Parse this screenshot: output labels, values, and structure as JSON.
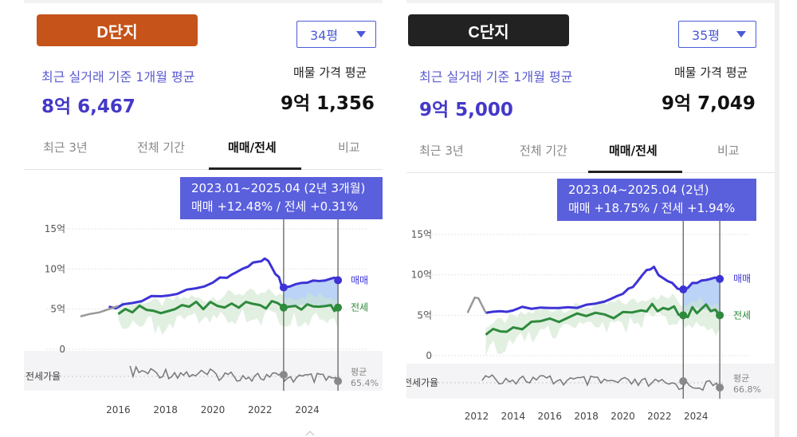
{
  "panels": [
    {
      "badge": "D단지",
      "badge_color": "#c5531a",
      "select_value": "34평",
      "real_label": "최근 실거래 기준 1개월 평균",
      "real_value": "8억 6,467",
      "ask_label": "매물 가격 평균",
      "ask_value": "9억 1,356",
      "tabs": [
        "최근 3년",
        "전체 기간",
        "매매/전세",
        "비교"
      ],
      "active_tab": 2,
      "tooltip_line1": "2023.01~2025.04 (2년 3개월)",
      "tooltip_line2": "매매 +12.48%  /  전세 +0.31%"
    },
    {
      "badge": "C단지",
      "badge_color": "#222222",
      "select_value": "35평",
      "real_label": "최근 실거래 기준 1개월 평균",
      "real_value": "9억 5,000",
      "ask_label": "매물 가격 평균",
      "ask_value": "9억 7,049",
      "tabs": [
        "최근 3년",
        "전체 기간",
        "매매/전세",
        "비교"
      ],
      "active_tab": 2,
      "tooltip_line1": "2023.04~2025.04 (2년)",
      "tooltip_line2": "매매 +18.75%  /  전세 +1.94%"
    }
  ],
  "chart_data": [
    {
      "type": "line",
      "panel": "D단지",
      "y_ticks": [
        "15억",
        "10억",
        "5억",
        "0"
      ],
      "ylim": [
        0,
        15
      ],
      "x_ticks": [
        "2016",
        "2018",
        "2020",
        "2022",
        "2024"
      ],
      "xlim": [
        2014.3,
        2025.5
      ],
      "ratio_label": "전세가율",
      "avg_label": "평균",
      "avg_value": "65.4%",
      "marker_years": [
        2023.0,
        2025.3
      ],
      "series": [
        {
          "name": "매매",
          "color": "#3d33d6",
          "x": [
            2015.6,
            2016.2,
            2017.0,
            2017.8,
            2018.5,
            2019.3,
            2020.0,
            2020.6,
            2021.0,
            2021.5,
            2021.9,
            2022.2,
            2022.5,
            2022.8,
            2023.0,
            2023.5,
            2024.0,
            2024.5,
            2025.0,
            2025.3
          ],
          "y": [
            5.3,
            5.6,
            6.0,
            6.6,
            6.9,
            7.6,
            8.3,
            8.9,
            9.6,
            10.3,
            10.9,
            11.3,
            10.2,
            9.0,
            7.7,
            8.1,
            8.3,
            8.5,
            8.8,
            8.6
          ]
        },
        {
          "name": "전세",
          "color": "#2e8a3c",
          "x": [
            2016.0,
            2016.6,
            2017.2,
            2017.8,
            2018.4,
            2019.0,
            2019.6,
            2020.2,
            2020.8,
            2021.4,
            2022.0,
            2022.5,
            2023.0,
            2023.5,
            2024.0,
            2024.5,
            2025.0,
            2025.3
          ],
          "y": [
            4.4,
            4.6,
            4.9,
            4.5,
            5.0,
            5.3,
            5.0,
            5.4,
            5.7,
            5.9,
            5.5,
            6.0,
            5.2,
            5.4,
            5.6,
            5.3,
            5.5,
            5.2
          ]
        },
        {
          "name": "",
          "color": "#999999",
          "x": [
            2014.4,
            2014.8,
            2015.2,
            2015.6,
            2016.0
          ],
          "y": [
            4.1,
            4.4,
            4.6,
            5.0,
            5.4
          ]
        }
      ]
    },
    {
      "type": "line",
      "panel": "C단지",
      "y_ticks": [
        "15억",
        "10억",
        "5억",
        "0"
      ],
      "ylim": [
        0,
        15
      ],
      "x_ticks": [
        "2012",
        "2014",
        "2016",
        "2018",
        "2020",
        "2022",
        "2024"
      ],
      "xlim": [
        2011.3,
        2025.6
      ],
      "ratio_label": "전세가율",
      "avg_label": "평균",
      "avg_value": "66.8%",
      "marker_years": [
        2023.3,
        2025.3
      ],
      "series": [
        {
          "name": "매매",
          "color": "#3d33d6",
          "x": [
            2012.5,
            2013.3,
            2014.0,
            2015.0,
            2016.0,
            2017.0,
            2018.0,
            2019.0,
            2019.7,
            2020.3,
            2020.8,
            2021.3,
            2021.7,
            2022.2,
            2022.7,
            2023.3,
            2023.8,
            2024.3,
            2024.8,
            2025.3
          ],
          "y": [
            5.3,
            5.5,
            5.6,
            5.8,
            5.9,
            6.0,
            6.3,
            6.7,
            7.4,
            8.3,
            9.2,
            10.6,
            11.0,
            9.6,
            9.0,
            8.2,
            9.0,
            9.3,
            9.5,
            9.5
          ]
        },
        {
          "name": "전세",
          "color": "#2e8a3c",
          "x": [
            2012.5,
            2013.3,
            2014.0,
            2015.0,
            2016.0,
            2017.0,
            2018.0,
            2019.0,
            2020.0,
            2021.0,
            2021.6,
            2022.2,
            2022.8,
            2023.3,
            2023.8,
            2024.3,
            2024.8,
            2025.3
          ],
          "y": [
            2.6,
            3.0,
            3.5,
            4.2,
            4.6,
            4.7,
            4.9,
            5.1,
            5.4,
            5.6,
            6.4,
            5.9,
            6.1,
            5.0,
            6.0,
            5.8,
            5.5,
            5.0
          ]
        },
        {
          "name": "",
          "color": "#999999",
          "x": [
            2011.5,
            2011.9,
            2012.1,
            2012.5
          ],
          "y": [
            5.3,
            7.2,
            7.1,
            5.3
          ]
        }
      ]
    }
  ]
}
